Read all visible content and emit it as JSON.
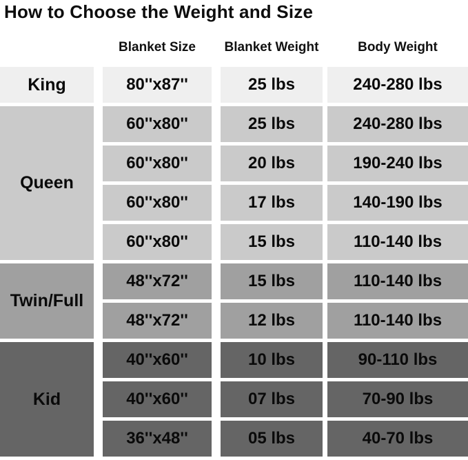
{
  "title": "How to Choose the Weight and Size",
  "colors": {
    "background": "#ffffff",
    "text": "#0d0d0d",
    "king_shade": "#efefef",
    "queen_shade": "#cacaca",
    "twin_full_shade": "#a0a0a0",
    "kid_shade": "#656565"
  },
  "table": {
    "headers": [
      "Blanket Size",
      "Blanket Weight",
      "Body Weight"
    ],
    "groups": [
      {
        "label": "King",
        "shade": "#efefef",
        "rows": [
          [
            "80''x87''",
            "25 lbs",
            "240-280 lbs"
          ]
        ]
      },
      {
        "label": "Queen",
        "shade": "#cacaca",
        "rows": [
          [
            "60''x80''",
            "25 lbs",
            "240-280 lbs"
          ],
          [
            "60''x80''",
            "20 lbs",
            "190-240 lbs"
          ],
          [
            "60''x80''",
            "17 lbs",
            "140-190 lbs"
          ],
          [
            "60''x80''",
            "15 lbs",
            "110-140 lbs"
          ]
        ]
      },
      {
        "label": "Twin/Full",
        "shade": "#a0a0a0",
        "rows": [
          [
            "48''x72''",
            "15 lbs",
            "110-140 lbs"
          ],
          [
            "48''x72''",
            "12 lbs",
            "110-140 lbs"
          ]
        ]
      },
      {
        "label": "Kid",
        "shade": "#656565",
        "rows": [
          [
            "40''x60''",
            "10 lbs",
            "90-110 lbs"
          ],
          [
            "40''x60''",
            "07 lbs",
            "70-90 lbs"
          ],
          [
            "36''x48''",
            "05 lbs",
            "40-70 lbs"
          ]
        ]
      }
    ]
  },
  "chart_data": {
    "type": "table",
    "title": "How to Choose the Weight and Size",
    "columns": [
      "",
      "Blanket Size",
      "Blanket Weight",
      "Body Weight"
    ],
    "rows": [
      [
        "King",
        "80''x87''",
        "25 lbs",
        "240-280 lbs"
      ],
      [
        "Queen",
        "60''x80''",
        "25 lbs",
        "240-280 lbs"
      ],
      [
        "Queen",
        "60''x80''",
        "20 lbs",
        "190-240 lbs"
      ],
      [
        "Queen",
        "60''x80''",
        "17 lbs",
        "140-190 lbs"
      ],
      [
        "Queen",
        "60''x80''",
        "15 lbs",
        "110-140 lbs"
      ],
      [
        "Twin/Full",
        "48''x72''",
        "15 lbs",
        "110-140 lbs"
      ],
      [
        "Twin/Full",
        "48''x72''",
        "12 lbs",
        "110-140 lbs"
      ],
      [
        "Kid",
        "40''x60''",
        "10 lbs",
        "90-110 lbs"
      ],
      [
        "Kid",
        "40''x60''",
        "07 lbs",
        "70-90 lbs"
      ],
      [
        "Kid",
        "36''x48''",
        "05 lbs",
        "40-70 lbs"
      ]
    ],
    "layout_hints": {
      "row_groups": [
        "King x1",
        "Queen x4",
        "Twin/Full x2",
        "Kid x3"
      ],
      "group_shading": "lightest to darkest top to bottom",
      "grid": "white gaps between cells"
    }
  }
}
